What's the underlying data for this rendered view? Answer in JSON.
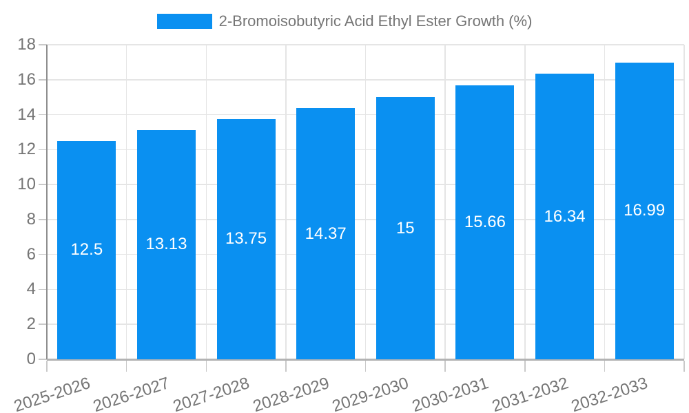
{
  "chart_data": {
    "type": "bar",
    "title": "2-Bromoisobutyric Acid Ethyl Ester Growth (%)",
    "categories": [
      "2025-2026",
      "2026-2027",
      "2027-2028",
      "2028-2029",
      "2029-2030",
      "2030-2031",
      "2031-2032",
      "2032-2033"
    ],
    "series": [
      {
        "name": "2-Bromoisobutyric Acid Ethyl Ester Growth (%)",
        "values": [
          12.5,
          13.13,
          13.75,
          14.37,
          15,
          15.66,
          16.34,
          16.99
        ],
        "value_labels": [
          "12.5",
          "13.13",
          "13.75",
          "14.37",
          "15",
          "15.66",
          "16.34",
          "16.99"
        ]
      }
    ],
    "xlabel": "",
    "ylabel": "",
    "ylim": [
      0,
      18
    ],
    "yticks": [
      0,
      2,
      4,
      6,
      8,
      10,
      12,
      14,
      16,
      18
    ],
    "ytick_labels": [
      "0",
      "2",
      "4",
      "6",
      "8",
      "10",
      "12",
      "14",
      "16",
      "18"
    ],
    "grid": true,
    "legend_position": "top",
    "x_label_rotation_deg": -18,
    "bar_label_position": "center"
  },
  "colors": {
    "bar": "#0a90f1",
    "bar_label": "#ffffff",
    "gridline": "#e5e5e5",
    "tick": "#c9c9c9",
    "y_axis_line": "#8e8e8e",
    "x_axis_line": "#b3b3b3",
    "text": "#757575",
    "background": "#ffffff"
  }
}
